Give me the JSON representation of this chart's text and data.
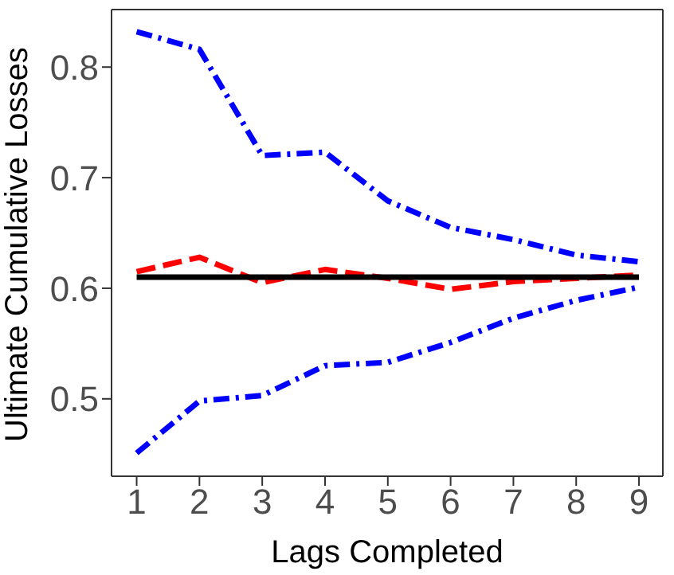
{
  "chart_data": {
    "type": "line",
    "xlabel": "Lags Completed",
    "ylabel": "Ultimate Cumulative Losses",
    "x": [
      1,
      2,
      3,
      4,
      5,
      6,
      7,
      8,
      9
    ],
    "series": [
      {
        "color": "#0000ff",
        "line_style": "dashdot",
        "values": [
          0.832,
          0.816,
          0.72,
          0.723,
          0.679,
          0.655,
          0.644,
          0.63,
          0.624
        ]
      },
      {
        "color": "#0000ff",
        "line_style": "dashdot",
        "values": [
          0.451,
          0.498,
          0.503,
          0.53,
          0.533,
          0.551,
          0.573,
          0.589,
          0.601
        ]
      },
      {
        "color": "#ff0000",
        "line_style": "dashed",
        "values": [
          0.615,
          0.628,
          0.605,
          0.617,
          0.609,
          0.599,
          0.606,
          0.609,
          0.612
        ]
      },
      {
        "color": "#000000",
        "line_style": "solid",
        "values": [
          0.61,
          0.61,
          0.61,
          0.61,
          0.61,
          0.61,
          0.61,
          0.61,
          0.61
        ]
      }
    ],
    "xlim": [
      0.6,
      9.38
    ],
    "xticks": [
      1,
      2,
      3,
      4,
      5,
      6,
      7,
      8,
      9
    ],
    "ylim": [
      0.43,
      0.852
    ],
    "yticks": [
      0.5,
      0.6,
      0.7,
      0.8
    ],
    "grid": false,
    "legend": false,
    "marker": "none"
  }
}
